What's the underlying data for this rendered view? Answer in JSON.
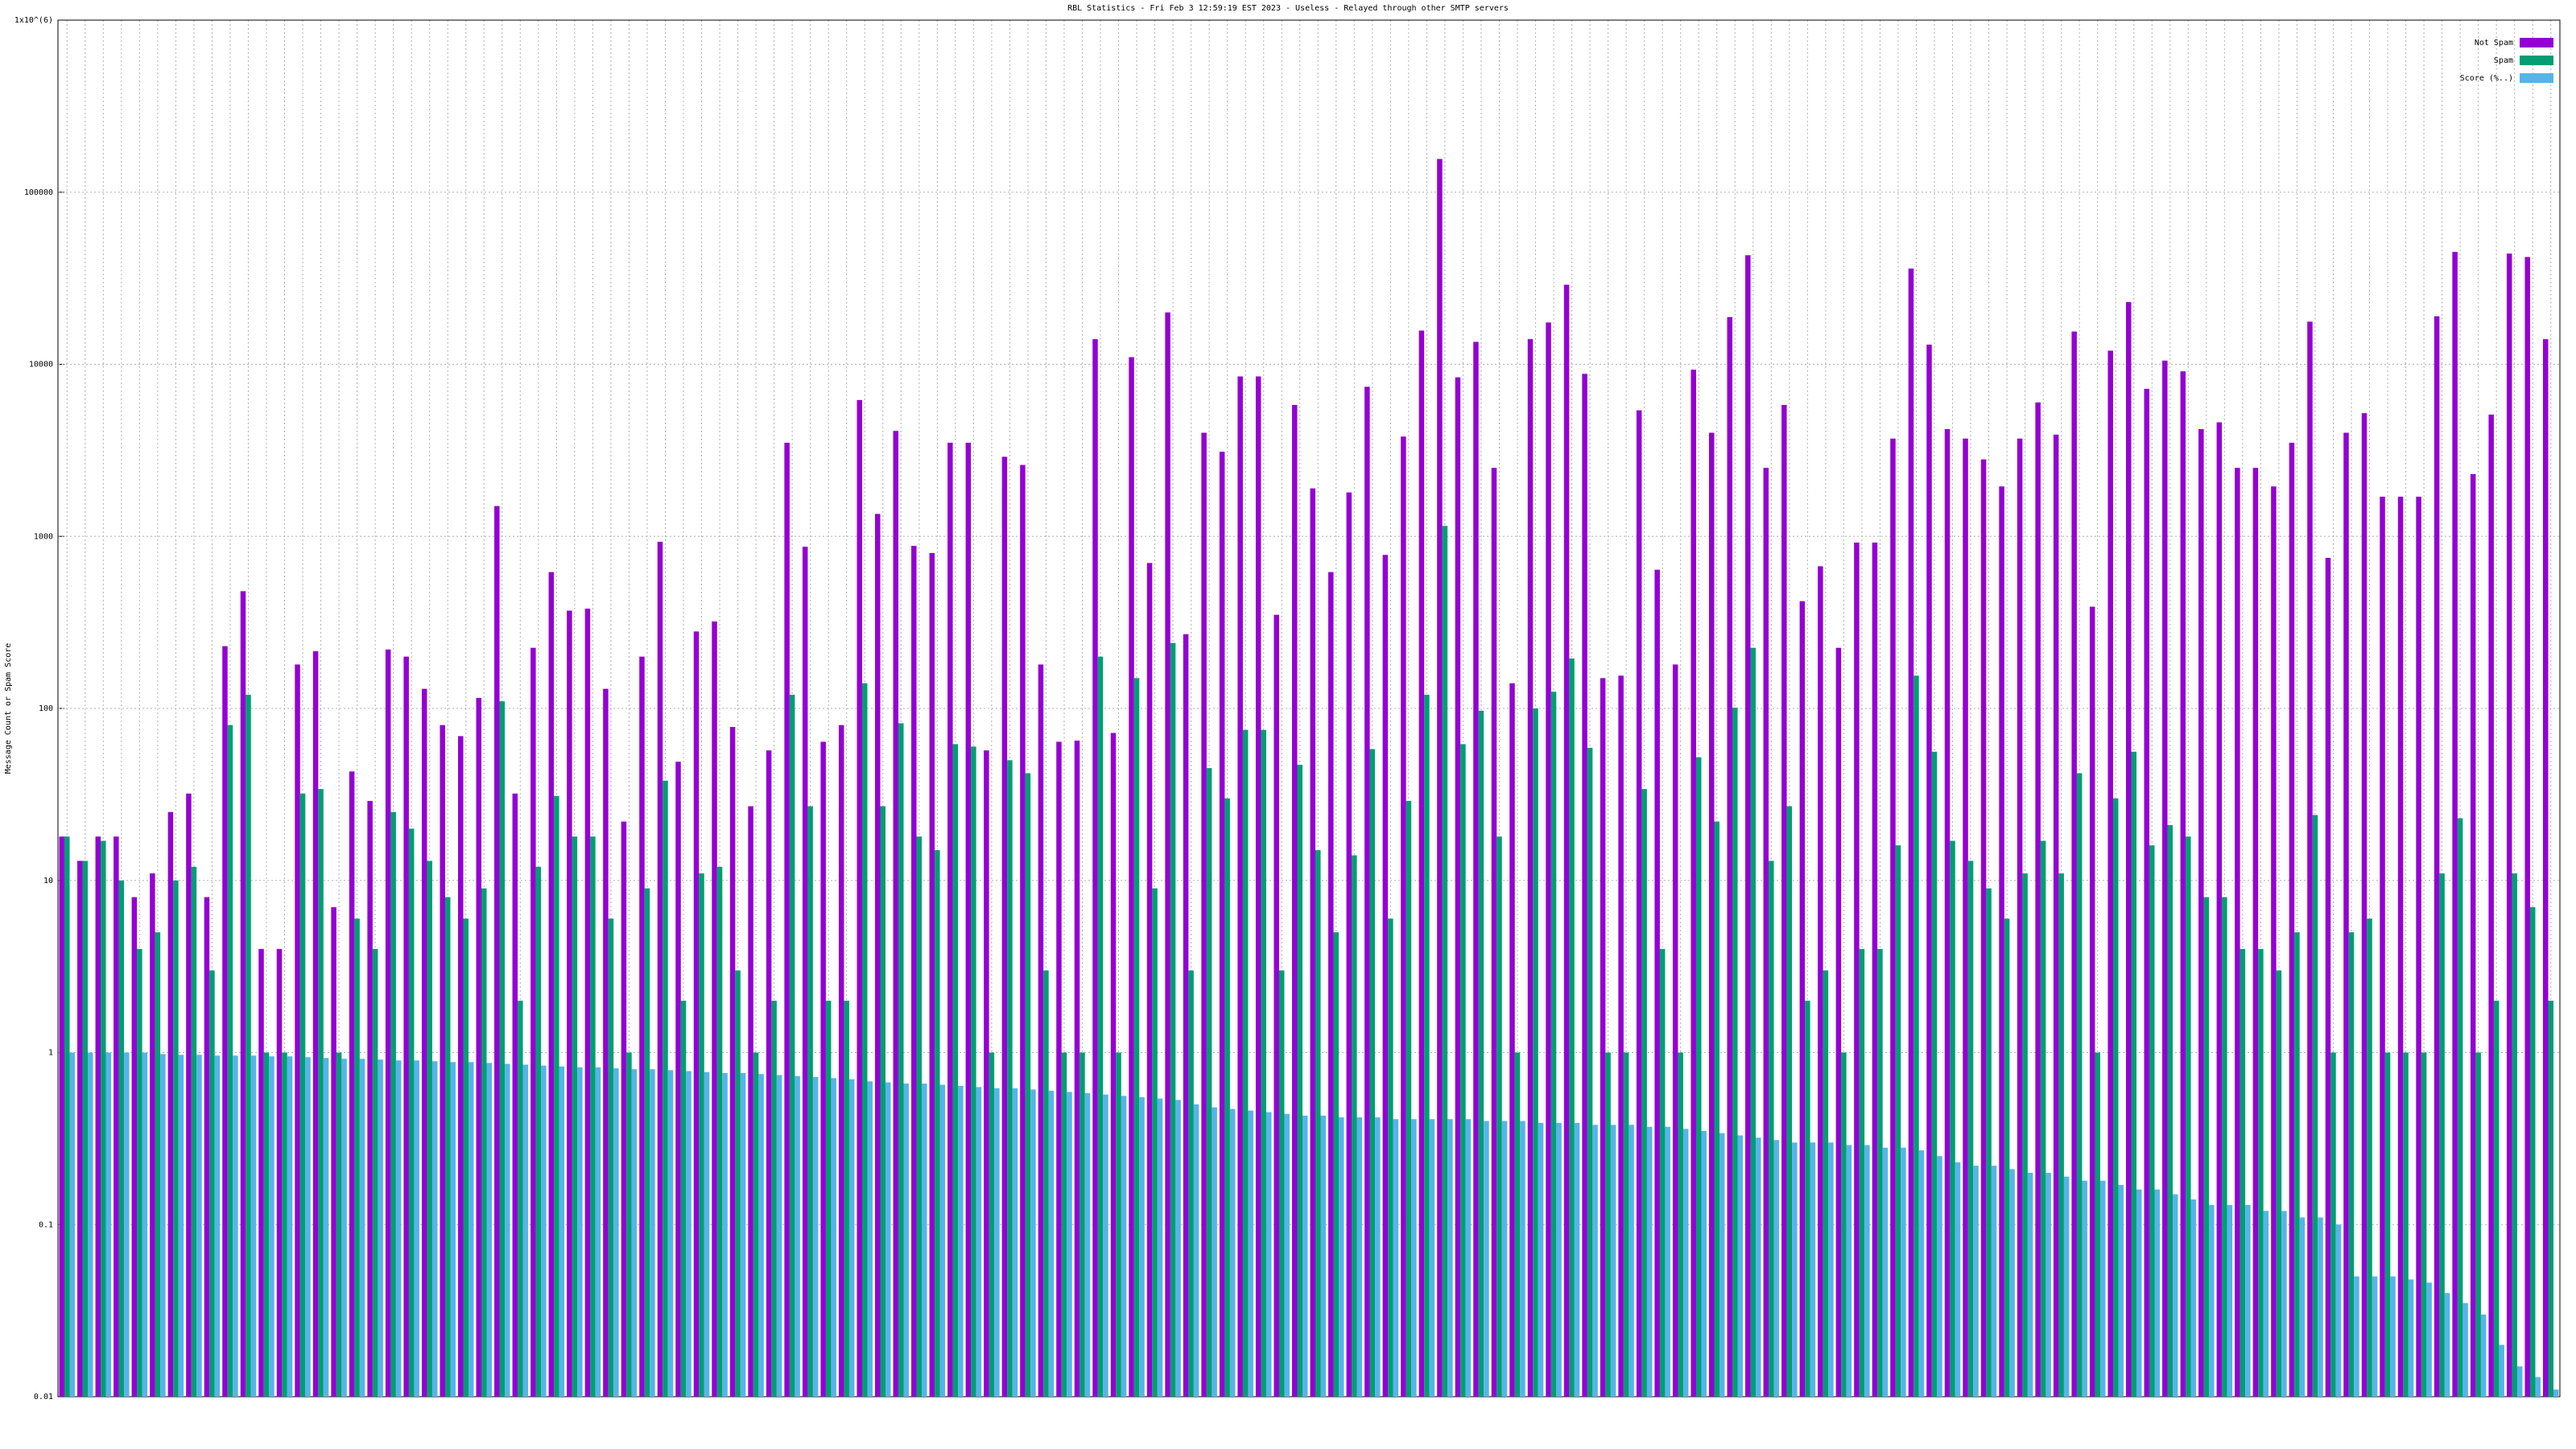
{
  "chart_data": {
    "type": "bar",
    "title": "RBL Statistics - Fri Feb  3 12:59:19 EST 2023 - Useless - Relayed through other SMTP servers",
    "ylabel": "Message Count or Spam Score",
    "log_scale": true,
    "grid": true,
    "legend": "top-right",
    "ylim": [
      0.01,
      1000000
    ],
    "yticks": [
      0.01,
      0.1,
      1,
      10,
      100,
      1000,
      10000,
      100000,
      {
        "value": 1000000,
        "label": "1x10^(6)"
      }
    ],
    "categories": [
      null,
      null,
      null,
      null,
      null,
      null,
      null,
      null,
      null,
      null,
      null,
      null,
      null,
      null,
      null,
      null,
      null,
      null,
      null,
      null,
      null,
      null,
      null,
      null,
      null,
      null,
      null,
      null,
      null,
      null,
      null,
      null,
      null,
      null,
      null,
      null,
      null,
      null,
      null,
      null,
      null,
      null,
      null,
      null,
      null,
      null,
      null,
      null,
      null,
      null,
      null,
      null,
      null,
      null,
      null,
      null,
      null,
      null,
      null,
      null,
      null,
      null,
      null,
      null,
      null,
      null,
      null,
      null,
      null,
      null,
      null,
      null,
      null,
      null,
      null,
      null,
      null,
      null,
      null,
      null,
      null,
      null,
      null,
      null,
      null,
      null,
      null,
      null,
      null,
      null,
      null,
      null,
      null,
      null,
      null,
      null,
      null,
      null,
      null,
      null,
      null,
      null,
      null,
      null,
      null,
      null,
      null,
      null,
      null,
      null,
      null,
      null,
      null,
      null,
      null,
      null,
      null,
      null,
      null,
      null,
      null,
      null,
      null,
      null,
      null,
      null,
      null,
      null,
      null,
      null,
      null,
      null,
      null,
      null,
      null,
      null,
      null,
      null
    ],
    "series": [
      {
        "name": "Not Spam",
        "color": "#9400d3",
        "values": [
          18,
          13,
          18,
          18,
          8,
          11,
          25,
          32,
          8,
          230,
          480,
          4,
          4,
          180,
          215,
          7,
          43,
          29,
          220,
          200,
          130,
          80,
          69,
          115,
          1500,
          32,
          225,
          620,
          370,
          380,
          130,
          22,
          200,
          930,
          49,
          280,
          320,
          78,
          27,
          57,
          3500,
          870,
          64,
          80,
          6200,
          1350,
          4100,
          880,
          800,
          3500,
          3500,
          57,
          2900,
          2600,
          180,
          64,
          65,
          14000,
          72,
          11000,
          700,
          20000,
          270,
          4000,
          3100,
          8500,
          8500,
          350,
          5800,
          1900,
          620,
          1800,
          7400,
          780,
          3800,
          15700,
          156000,
          8400,
          13500,
          2500,
          140,
          14000,
          17500,
          29000,
          8800,
          150,
          155,
          5400,
          640,
          180,
          9300,
          4000,
          18800,
          43000,
          2500,
          5800,
          420,
          670,
          225,
          920,
          920,
          3700,
          36000,
          13000,
          4200,
          3700,
          2800,
          1950,
          3700,
          6000,
          3900,
          15500,
          390,
          12000,
          23000,
          7200,
          10500,
          9100,
          4200,
          4600,
          2500,
          2500,
          1950,
          3500,
          17700,
          750,
          4000,
          5200,
          1700,
          1700,
          1700,
          19000,
          45000,
          2300,
          5100,
          44000,
          42000,
          14000
        ]
      },
      {
        "name": "Spam",
        "color": "#009e73",
        "values": [
          18,
          13,
          17,
          10,
          4,
          5,
          10,
          12,
          3,
          80,
          120,
          1,
          1,
          32,
          34,
          1,
          6,
          4,
          25,
          20,
          13,
          8,
          6,
          9,
          110,
          2,
          12,
          31,
          18,
          18,
          6,
          1,
          9,
          38,
          2,
          11,
          12,
          3,
          1,
          2,
          120,
          27,
          2,
          2,
          140,
          27,
          82,
          18,
          15,
          62,
          60,
          1,
          50,
          42,
          3,
          1,
          1,
          200,
          1,
          150,
          9,
          240,
          3,
          45,
          30,
          75,
          75,
          3,
          47,
          15,
          5,
          14,
          58,
          6,
          29,
          120,
          1150,
          62,
          97,
          18,
          1,
          100,
          125,
          195,
          59,
          1,
          1,
          34,
          4,
          1,
          52,
          22,
          101,
          225,
          13,
          27,
          2,
          3,
          1,
          4,
          4,
          16,
          155,
          56,
          17,
          13,
          9,
          6,
          11,
          17,
          11,
          42,
          1,
          30,
          56,
          16,
          21,
          18,
          8,
          8,
          4,
          4,
          3,
          5,
          24,
          1,
          5,
          6,
          1,
          1,
          1,
          11,
          23,
          1,
          2,
          11,
          7,
          2
        ]
      },
      {
        "name": "Score (%..)",
        "color": "#56b4e9",
        "values": [
          1,
          1,
          1,
          1,
          1,
          0.98,
          0.97,
          0.97,
          0.96,
          0.96,
          0.96,
          0.95,
          0.95,
          0.94,
          0.93,
          0.92,
          0.92,
          0.91,
          0.9,
          0.9,
          0.89,
          0.88,
          0.88,
          0.87,
          0.86,
          0.85,
          0.84,
          0.83,
          0.82,
          0.82,
          0.81,
          0.8,
          0.8,
          0.79,
          0.78,
          0.77,
          0.76,
          0.76,
          0.75,
          0.74,
          0.73,
          0.72,
          0.71,
          0.7,
          0.68,
          0.67,
          0.66,
          0.66,
          0.65,
          0.64,
          0.63,
          0.62,
          0.62,
          0.61,
          0.6,
          0.59,
          0.58,
          0.57,
          0.56,
          0.55,
          0.54,
          0.53,
          0.5,
          0.48,
          0.47,
          0.46,
          0.45,
          0.44,
          0.43,
          0.43,
          0.42,
          0.42,
          0.42,
          0.41,
          0.41,
          0.41,
          0.41,
          0.41,
          0.4,
          0.4,
          0.4,
          0.39,
          0.39,
          0.39,
          0.38,
          0.38,
          0.38,
          0.37,
          0.37,
          0.36,
          0.35,
          0.34,
          0.33,
          0.32,
          0.31,
          0.3,
          0.3,
          0.3,
          0.29,
          0.29,
          0.28,
          0.28,
          0.27,
          0.25,
          0.23,
          0.22,
          0.22,
          0.21,
          0.2,
          0.2,
          0.19,
          0.18,
          0.18,
          0.17,
          0.16,
          0.16,
          0.15,
          0.14,
          0.13,
          0.13,
          0.13,
          0.12,
          0.12,
          0.11,
          0.11,
          0.1,
          0.05,
          0.05,
          0.05,
          0.048,
          0.046,
          0.04,
          0.035,
          0.03,
          0.02,
          0.015,
          0.013,
          0.011
        ]
      }
    ]
  }
}
